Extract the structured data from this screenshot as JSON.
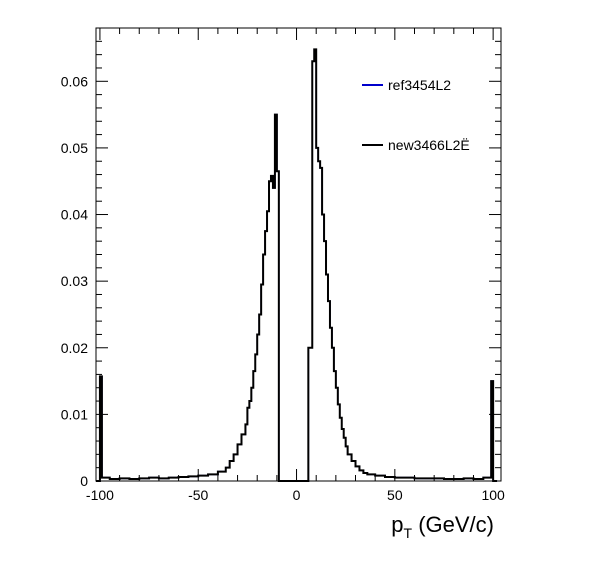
{
  "chart_data": {
    "type": "histogram",
    "xlabel_main": "p",
    "xlabel_sub": "T",
    "xlabel_rest": " (GeV/c)",
    "xlim": [
      -102,
      104
    ],
    "ylim": [
      0,
      0.068
    ],
    "x_ticks": [
      -100,
      -50,
      0,
      50,
      100
    ],
    "x_tick_labels": [
      "-100",
      "-50",
      "0",
      "50",
      "100"
    ],
    "y_ticks": [
      0,
      0.01,
      0.02,
      0.03,
      0.04,
      0.05,
      0.06
    ],
    "y_tick_labels": [
      "0",
      "0.01",
      "0.02",
      "0.03",
      "0.04",
      "0.05",
      "0.06"
    ],
    "grid": false,
    "legend_position": "top-right",
    "bin_edges": [
      -102,
      -100,
      -99,
      -95,
      -90,
      -85,
      -80,
      -75,
      -70,
      -65,
      -60,
      -55,
      -50,
      -45,
      -40,
      -36,
      -34,
      -32,
      -30,
      -28,
      -26,
      -25,
      -24,
      -23,
      -22,
      -21,
      -20,
      -19,
      -18,
      -17,
      -16,
      -15,
      -14,
      -13,
      -12,
      -11,
      -10,
      -9,
      -8,
      -6,
      -5,
      -4,
      0,
      2,
      3,
      4,
      6,
      8,
      9,
      10,
      11,
      12,
      13,
      14,
      15,
      16,
      17,
      18,
      19,
      20,
      21,
      22,
      23,
      24,
      25,
      26,
      28,
      30,
      32,
      34,
      36,
      40,
      45,
      50,
      55,
      60,
      65,
      70,
      75,
      80,
      85,
      90,
      95,
      99,
      100,
      102
    ],
    "series": [
      {
        "name": "ref3454L2",
        "color": "#0000cc",
        "values": [
          0,
          0.0157,
          0.0005,
          0.0003,
          0.0004,
          0.0003,
          0.0004,
          0.0005,
          0.0004,
          0.0005,
          0.0006,
          0.0007,
          0.0008,
          0.001,
          0.0014,
          0.002,
          0.003,
          0.004,
          0.0055,
          0.007,
          0.0085,
          0.011,
          0.012,
          0.014,
          0.0165,
          0.019,
          0.022,
          0.025,
          0.0295,
          0.034,
          0.0375,
          0.0405,
          0.045,
          0.0458,
          0.044,
          0.055,
          0.0465,
          0,
          0,
          0,
          0,
          0,
          0,
          0,
          0,
          0,
          0.02,
          0.063,
          0.0648,
          0.05,
          0.048,
          0.047,
          0.04,
          0.036,
          0.031,
          0.027,
          0.023,
          0.02,
          0.0165,
          0.014,
          0.0115,
          0.0095,
          0.0078,
          0.0065,
          0.0052,
          0.004,
          0.003,
          0.0022,
          0.0016,
          0.0012,
          0.001,
          0.0008,
          0.0006,
          0.0005,
          0.0005,
          0.0004,
          0.0004,
          0.0004,
          0.0003,
          0.0003,
          0.0004,
          0.0003,
          0.0005,
          0.015,
          0
        ]
      },
      {
        "name": "new3466L2Ë",
        "color": "#000000",
        "values": [
          0,
          0.0157,
          0.0005,
          0.0003,
          0.0004,
          0.0003,
          0.0004,
          0.0005,
          0.0004,
          0.0005,
          0.0006,
          0.0007,
          0.0008,
          0.001,
          0.0014,
          0.002,
          0.003,
          0.004,
          0.0055,
          0.007,
          0.0085,
          0.011,
          0.012,
          0.014,
          0.0165,
          0.019,
          0.022,
          0.025,
          0.0295,
          0.034,
          0.0375,
          0.0405,
          0.045,
          0.0458,
          0.044,
          0.055,
          0.0465,
          0,
          0,
          0,
          0,
          0,
          0,
          0,
          0,
          0,
          0.02,
          0.063,
          0.0648,
          0.05,
          0.048,
          0.047,
          0.04,
          0.036,
          0.031,
          0.027,
          0.023,
          0.02,
          0.0165,
          0.014,
          0.0115,
          0.0095,
          0.0078,
          0.0065,
          0.0052,
          0.004,
          0.003,
          0.0022,
          0.0016,
          0.0012,
          0.001,
          0.0008,
          0.0006,
          0.0005,
          0.0005,
          0.0004,
          0.0004,
          0.0004,
          0.0003,
          0.0003,
          0.0004,
          0.0003,
          0.0005,
          0.015,
          0
        ]
      }
    ]
  }
}
